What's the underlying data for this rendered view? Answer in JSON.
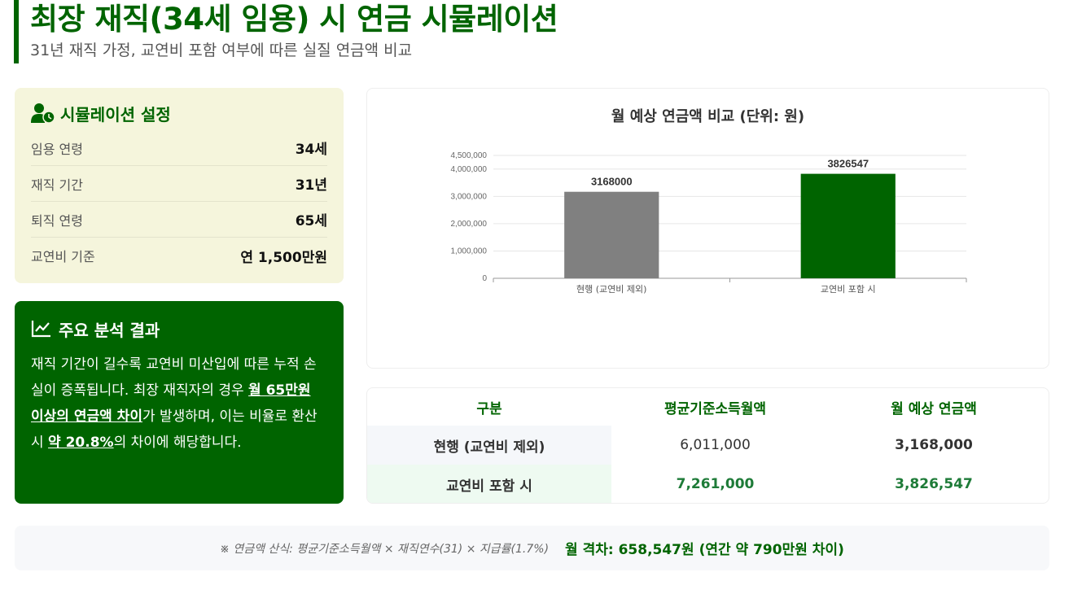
{
  "header": {
    "title": "최장 재직(34세 임용) 시 연금 시뮬레이션",
    "subtitle": "31년 재직 가정, 교연비 포함 여부에 따른 실질 연금액 비교"
  },
  "settings": {
    "title": "시뮬레이션 설정",
    "icon": "user-clock-icon",
    "rows": [
      {
        "label": "임용 연령",
        "value": "34세"
      },
      {
        "label": "재직 기간",
        "value": "31년"
      },
      {
        "label": "퇴직 연령",
        "value": "65세"
      },
      {
        "label": "교연비 기준",
        "value": "연 1,500만원"
      }
    ]
  },
  "analysis": {
    "title": "주요 분석 결과",
    "icon": "line-chart-icon",
    "text_1": "재직 기간이 길수록 교연비 미산입에 따른 누적 손실이 증폭됩니다. 최장 재직자의 경우 ",
    "highlight_1": "월 65만원 이상의 연금액 차이",
    "text_2": "가 발생하며, 이는 비율로 환산 시 ",
    "highlight_2": "약 20.8%",
    "text_3": "의 차이에 해당합니다."
  },
  "chart_data": {
    "type": "bar",
    "title": "월 예상 연금액 비교 (단위: 원)",
    "categories": [
      "현행 (교연비 제외)",
      "교연비 포함 시"
    ],
    "values": [
      3168000,
      3826547
    ],
    "value_labels": [
      "3168000",
      "3826547"
    ],
    "colors": [
      "#808080",
      "#006400"
    ],
    "ylim": [
      0,
      4500000
    ],
    "yticks": [
      0,
      1000000,
      2000000,
      3000000,
      4000000,
      4500000
    ],
    "ytick_labels": [
      "0",
      "1,000,000",
      "2,000,000",
      "3,000,000",
      "4,000,000",
      "4,500,000"
    ],
    "grid": true,
    "legend": "none"
  },
  "table": {
    "headers": [
      "구분",
      "평균기준소득월액",
      "월 예상 연금액"
    ],
    "rows": [
      [
        "현행 (교연비 제외)",
        "6,011,000",
        "3,168,000"
      ],
      [
        "교연비 포함 시",
        "7,261,000",
        "3,826,547"
      ]
    ]
  },
  "footer": {
    "formula": "※ 연금액 산식: 평균기준소득월액 × 재직연수(31) × 지급률(1.7%)",
    "difference": "월 격차: 658,547원 (연간 약 790만원 차이)"
  },
  "colors": {
    "brand": "#006400",
    "settings_bg": "#f5f5dc",
    "bar_current": "#808080",
    "bar_included": "#006400"
  }
}
